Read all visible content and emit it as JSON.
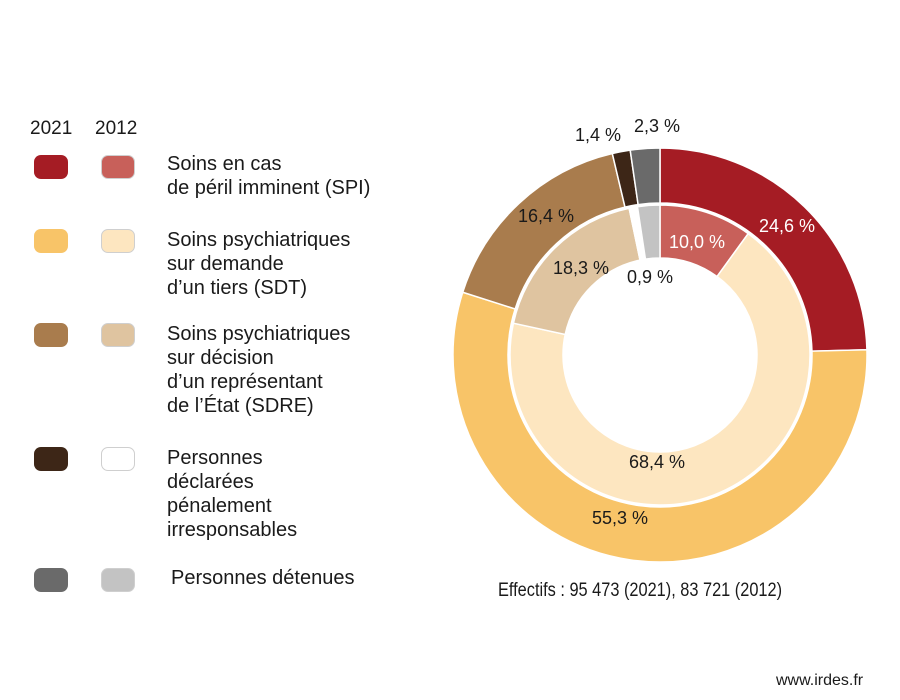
{
  "chart_data": {
    "type": "pie",
    "subtype": "double-donut",
    "outer_ring_year": "2021",
    "inner_ring_year": "2012",
    "legend": {
      "years": [
        "2021",
        "2012"
      ],
      "items": [
        {
          "label": "Soins en cas\nde péril imminent (SPI)",
          "color_2021": "#a51c24",
          "color_2012": "#c8605a"
        },
        {
          "label": "Soins psychiatriques\nsur demande\nd’un tiers (SDT)",
          "color_2021": "#f8c468",
          "color_2012": "#fde6c0"
        },
        {
          "label": "Soins psychiatriques\nsur décision\nd’un représentant\nde l’État (SDRE)",
          "color_2021": "#a97c4d",
          "color_2012": "#dfc4a0"
        },
        {
          "label": "Personnes\ndéclarées\npénalement\nirresponsables",
          "color_2021": "#3d2617",
          "color_2012": "#ffffff"
        },
        {
          "label": "Personnes détenues",
          "color_2021": "#6a6a6a",
          "color_2012": "#c3c3c3"
        }
      ]
    },
    "series": [
      {
        "name": "2021",
        "values": [
          24.6,
          55.3,
          16.4,
          1.4,
          2.3
        ],
        "labels": [
          "24,6 %",
          "55,3 %",
          "16,4 %",
          "1,4 %",
          "2,3 %"
        ],
        "colors": [
          "#a51c24",
          "#f8c468",
          "#a97c4d",
          "#3d2617",
          "#6a6a6a"
        ]
      },
      {
        "name": "2012",
        "values": [
          10.0,
          68.4,
          18.3,
          0.9,
          2.4
        ],
        "labels": [
          "10,0 %",
          "68,4 %",
          "18,3 %",
          "0,9 %",
          ""
        ],
        "colors": [
          "#c8605a",
          "#fde6c0",
          "#dfc4a0",
          "#ffffff",
          "#c3c3c3"
        ]
      }
    ],
    "footnote": "Effectifs : 95 473 (2021), 83 721 (2012)"
  },
  "source": "www.irdes.fr"
}
